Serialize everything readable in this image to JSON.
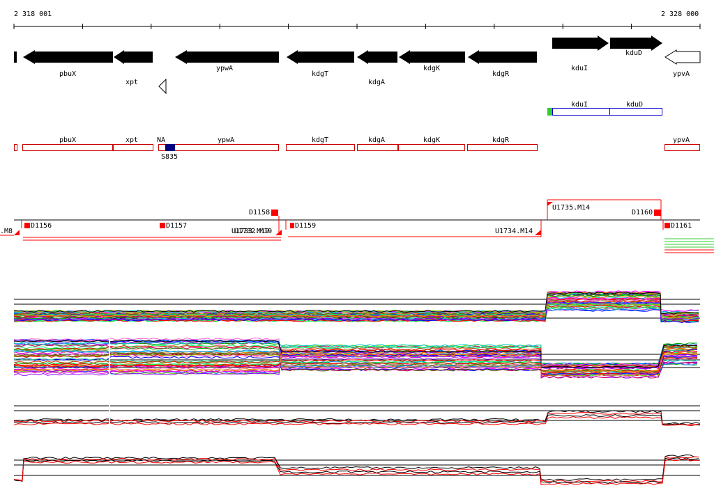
{
  "ruler": {
    "start_label": "2 318 001",
    "end_label": "2 328 000"
  },
  "genes": [
    {
      "name": "pbuX",
      "strand": "-"
    },
    {
      "name": "xpt",
      "strand": "-"
    },
    {
      "name": "ypwA",
      "strand": "-"
    },
    {
      "name": "kdgT",
      "strand": "-"
    },
    {
      "name": "kdgA",
      "strand": "-"
    },
    {
      "name": "kdgK",
      "strand": "-"
    },
    {
      "name": "kdgR",
      "strand": "-"
    },
    {
      "name": "kduI",
      "strand": "+"
    },
    {
      "name": "kduD",
      "strand": "+"
    },
    {
      "name": "ypvA",
      "strand": "-"
    }
  ],
  "operon": {
    "names": [
      "kduI",
      "kduD"
    ],
    "start_color": "#33cc33",
    "border_color": "#0000cc"
  },
  "transcripts": {
    "names": [
      "pbuX",
      "xpt",
      "NA",
      "ypwA",
      "kdgT",
      "kdgA",
      "kdgK",
      "kdgR",
      "ypvA"
    ],
    "site_label": "S835",
    "border_color": "#cc0000",
    "site_color": "#000080"
  },
  "features": {
    "labels": [
      ".M8",
      "D1156",
      "D1157",
      "D1158",
      "U1733.M19",
      "U1732.M19",
      "D1159",
      "U1734.M14",
      "U1735.M14",
      "D1160",
      "D1161"
    ],
    "color": "#ff0000"
  },
  "colors": {
    "forward": "#000000",
    "reverse": "#ff0000",
    "grid": "#000000"
  }
}
